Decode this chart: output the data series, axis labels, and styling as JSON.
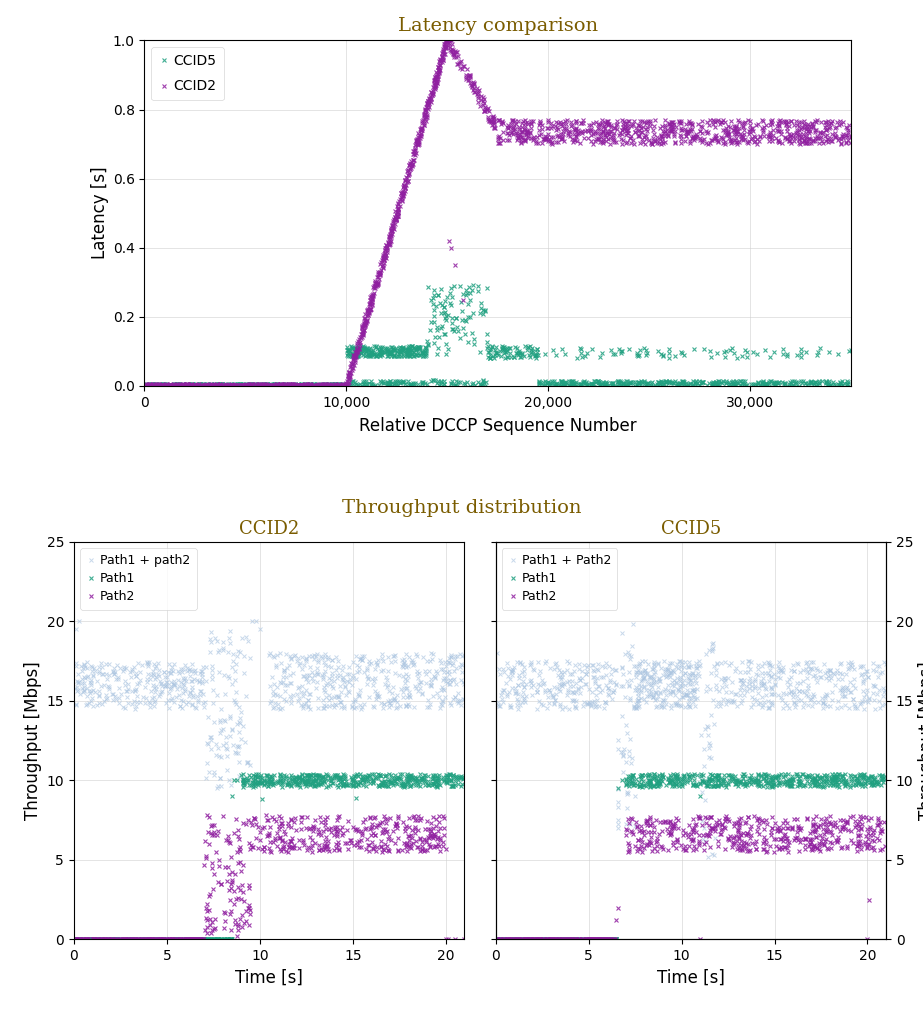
{
  "latency_title": "Latency comparison",
  "latency_xlabel": "Relative DCCP Sequence Number",
  "latency_ylabel": "Latency [s]",
  "latency_xlim": [
    0,
    35000
  ],
  "latency_ylim": [
    0,
    1.0
  ],
  "latency_xticks": [
    0,
    10000,
    20000,
    30000
  ],
  "latency_xticklabels": [
    "0",
    "10,000",
    "20,000",
    "30,000"
  ],
  "latency_yticks": [
    0,
    0.2,
    0.4,
    0.6,
    0.8,
    1.0
  ],
  "throughput_title": "Throughput distribution",
  "throughput_xlabel": "Time [s]",
  "throughput_ylabel": "Throughput [Mbps]",
  "throughput_ylim": [
    0,
    25
  ],
  "throughput_yticks": [
    0,
    5,
    10,
    15,
    20,
    25
  ],
  "throughput_xlim": [
    0,
    21
  ],
  "throughput_xticks": [
    0,
    5,
    10,
    15,
    20
  ],
  "ccid5_color": "#20a080",
  "ccid2_color": "#9020a0",
  "path1_color": "#20a080",
  "path2_color": "#9020a0",
  "path_sum_color": "#aac4e0",
  "title_color": "#7a5c00",
  "marker": "x",
  "markersize": 2.5,
  "alpha_ccid": 0.85,
  "alpha_sum": 0.65
}
